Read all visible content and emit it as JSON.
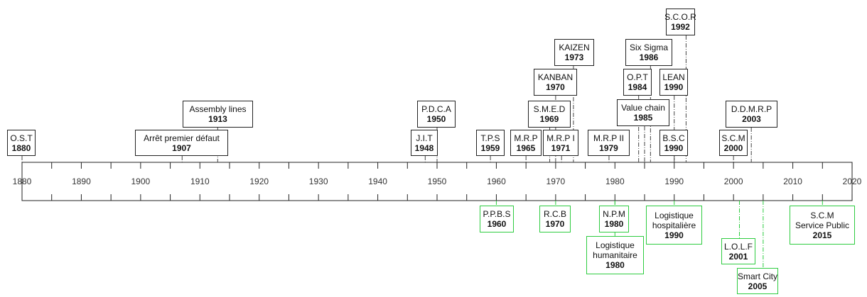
{
  "axis": {
    "labels": [
      "1880",
      "1890",
      "1900",
      "1910",
      "1920",
      "1930",
      "1940",
      "1950",
      "1960",
      "1970",
      "1980",
      "1990",
      "2000",
      "2010",
      "2020"
    ]
  },
  "above": [
    {
      "lines": [
        "O.S.T"
      ],
      "year": "1880"
    },
    {
      "lines": [
        "Arrêt premier défaut"
      ],
      "year": "1907"
    },
    {
      "lines": [
        "Assembly lines"
      ],
      "year": "1913"
    },
    {
      "lines": [
        "J.I.T"
      ],
      "year": "1948"
    },
    {
      "lines": [
        "P.D.C.A"
      ],
      "year": "1950"
    },
    {
      "lines": [
        "T.P.S"
      ],
      "year": "1959"
    },
    {
      "lines": [
        "M.R.P"
      ],
      "year": "1965"
    },
    {
      "lines": [
        "M.R.P I"
      ],
      "year": "1971"
    },
    {
      "lines": [
        "S.M.E.D"
      ],
      "year": "1969"
    },
    {
      "lines": [
        "KANBAN"
      ],
      "year": "1970"
    },
    {
      "lines": [
        "KAIZEN"
      ],
      "year": "1973"
    },
    {
      "lines": [
        "M.R.P II"
      ],
      "year": "1979"
    },
    {
      "lines": [
        "Value chain"
      ],
      "year": "1985"
    },
    {
      "lines": [
        "O.P.T"
      ],
      "year": "1984"
    },
    {
      "lines": [
        "Six Sigma"
      ],
      "year": "1986"
    },
    {
      "lines": [
        "B.S.C"
      ],
      "year": "1990"
    },
    {
      "lines": [
        "LEAN"
      ],
      "year": "1990"
    },
    {
      "lines": [
        "S.C.O.R"
      ],
      "year": "1992"
    },
    {
      "lines": [
        "S.C.M"
      ],
      "year": "2000"
    },
    {
      "lines": [
        "D.D.M.R.P"
      ],
      "year": "2003"
    }
  ],
  "below": [
    {
      "lines": [
        "P.P.B.S"
      ],
      "year": "1960"
    },
    {
      "lines": [
        "R.C.B"
      ],
      "year": "1970"
    },
    {
      "lines": [
        "N.P.M"
      ],
      "year": "1980"
    },
    {
      "lines": [
        "Logistique",
        "humanitaire"
      ],
      "year": "1980"
    },
    {
      "lines": [
        "Logistique",
        "hospitalière"
      ],
      "year": "1990"
    },
    {
      "lines": [
        "L.O.L.F"
      ],
      "year": "2001"
    },
    {
      "lines": [
        "Smart City"
      ],
      "year": "2005"
    },
    {
      "lines": [
        "S.C.M",
        "Service Public"
      ],
      "year": "2015"
    }
  ]
}
